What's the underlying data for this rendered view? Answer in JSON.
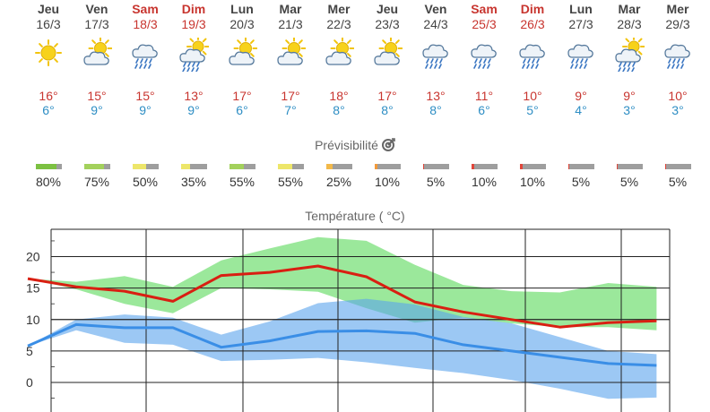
{
  "days": [
    {
      "name": "Jeu",
      "date": "16/3",
      "weekend": false,
      "icon": "sun-icon",
      "max": "16°",
      "min": "6°",
      "reliability": "80%",
      "rel_pct": 0.8,
      "rel_color": "#7cc142"
    },
    {
      "name": "Ven",
      "date": "17/3",
      "weekend": false,
      "icon": "sun-cloud-icon",
      "max": "15°",
      "min": "9°",
      "reliability": "75%",
      "rel_pct": 0.75,
      "rel_color": "#a3d15c"
    },
    {
      "name": "Sam",
      "date": "18/3",
      "weekend": true,
      "icon": "cloud-rain-icon",
      "max": "15°",
      "min": "9°",
      "reliability": "50%",
      "rel_pct": 0.5,
      "rel_color": "#ede66a"
    },
    {
      "name": "Dim",
      "date": "19/3",
      "weekend": true,
      "icon": "sun-cloud-rain-icon",
      "max": "13°",
      "min": "9°",
      "reliability": "35%",
      "rel_pct": 0.35,
      "rel_color": "#ede66a"
    },
    {
      "name": "Lun",
      "date": "20/3",
      "weekend": false,
      "icon": "sun-cloud-icon",
      "max": "17°",
      "min": "6°",
      "reliability": "55%",
      "rel_pct": 0.55,
      "rel_color": "#a3d15c"
    },
    {
      "name": "Mar",
      "date": "21/3",
      "weekend": false,
      "icon": "sun-cloud-icon",
      "max": "17°",
      "min": "7°",
      "reliability": "55%",
      "rel_pct": 0.55,
      "rel_color": "#ede66a"
    },
    {
      "name": "Mer",
      "date": "22/3",
      "weekend": false,
      "icon": "sun-cloud-icon",
      "max": "18°",
      "min": "8°",
      "reliability": "25%",
      "rel_pct": 0.25,
      "rel_color": "#f2b94a"
    },
    {
      "name": "Jeu",
      "date": "23/3",
      "weekend": false,
      "icon": "sun-cloud-icon",
      "max": "17°",
      "min": "8°",
      "reliability": "10%",
      "rel_pct": 0.1,
      "rel_color": "#f29a3a"
    },
    {
      "name": "Ven",
      "date": "24/3",
      "weekend": false,
      "icon": "cloud-rain-icon",
      "max": "13°",
      "min": "8°",
      "reliability": "5%",
      "rel_pct": 0.05,
      "rel_color": "#e0463a"
    },
    {
      "name": "Sam",
      "date": "25/3",
      "weekend": true,
      "icon": "cloud-rain-icon",
      "max": "11°",
      "min": "6°",
      "reliability": "10%",
      "rel_pct": 0.1,
      "rel_color": "#e0463a"
    },
    {
      "name": "Dim",
      "date": "26/3",
      "weekend": true,
      "icon": "cloud-rain-icon",
      "max": "10°",
      "min": "5°",
      "reliability": "10%",
      "rel_pct": 0.1,
      "rel_color": "#e0463a"
    },
    {
      "name": "Lun",
      "date": "27/3",
      "weekend": false,
      "icon": "cloud-rain-icon",
      "max": "9°",
      "min": "4°",
      "reliability": "5%",
      "rel_pct": 0.05,
      "rel_color": "#e0463a"
    },
    {
      "name": "Mar",
      "date": "28/3",
      "weekend": false,
      "icon": "sun-cloud-rain-icon",
      "max": "9°",
      "min": "3°",
      "reliability": "5%",
      "rel_pct": 0.05,
      "rel_color": "#e0463a"
    },
    {
      "name": "Mer",
      "date": "29/3",
      "weekend": false,
      "icon": "cloud-rain-icon",
      "max": "10°",
      "min": "3°",
      "reliability": "5%",
      "rel_pct": 0.05,
      "rel_color": "#e0463a"
    }
  ],
  "reliability_title": "Prévisibilité",
  "chart_title": "Température ( °C)",
  "colors": {
    "max_line": "#d91f12",
    "min_line": "#3a8ee6",
    "max_band": "#79e07a",
    "min_band": "#5aa3ec",
    "weekend_text": "#c8352f",
    "min_text": "#2e8ec4"
  },
  "chart_data": {
    "type": "line",
    "title": "Température ( °C)",
    "x": [
      0,
      1,
      2,
      3,
      4,
      5,
      6,
      7,
      8,
      9,
      10,
      11,
      12,
      13
    ],
    "y_ticks": [
      0,
      5,
      10,
      15,
      20
    ],
    "ylim": [
      -3,
      24
    ],
    "series": [
      {
        "key": "max",
        "values": [
          16.5,
          15.2,
          14.5,
          12.9,
          17.0,
          17.5,
          18.5,
          16.8,
          12.8,
          11.2,
          10.0,
          8.8,
          9.5,
          9.8
        ]
      },
      {
        "key": "min",
        "values": [
          5.8,
          9.2,
          8.7,
          8.7,
          5.6,
          6.6,
          8.1,
          8.2,
          7.8,
          6.0,
          5.0,
          4.0,
          3.0,
          2.7
        ]
      }
    ],
    "max_band": {
      "upper": [
        16.5,
        16.0,
        16.9,
        15.2,
        19.4,
        21.3,
        23.1,
        22.5,
        18.7,
        15.5,
        14.5,
        14.3,
        15.8,
        15.2
      ],
      "lower": [
        16.5,
        14.8,
        12.5,
        11.0,
        15.0,
        14.8,
        14.4,
        11.8,
        9.5,
        10.3,
        9.4,
        8.8,
        8.8,
        8.3
      ]
    },
    "min_band": {
      "upper": [
        5.8,
        10.0,
        10.8,
        10.3,
        7.6,
        9.7,
        12.6,
        13.3,
        12.4,
        10.4,
        9.4,
        7.2,
        5.0,
        4.5
      ],
      "lower": [
        5.8,
        8.3,
        6.3,
        6.0,
        3.4,
        3.6,
        3.9,
        3.2,
        2.3,
        1.5,
        0.4,
        -1.0,
        -2.6,
        -2.4
      ]
    }
  }
}
